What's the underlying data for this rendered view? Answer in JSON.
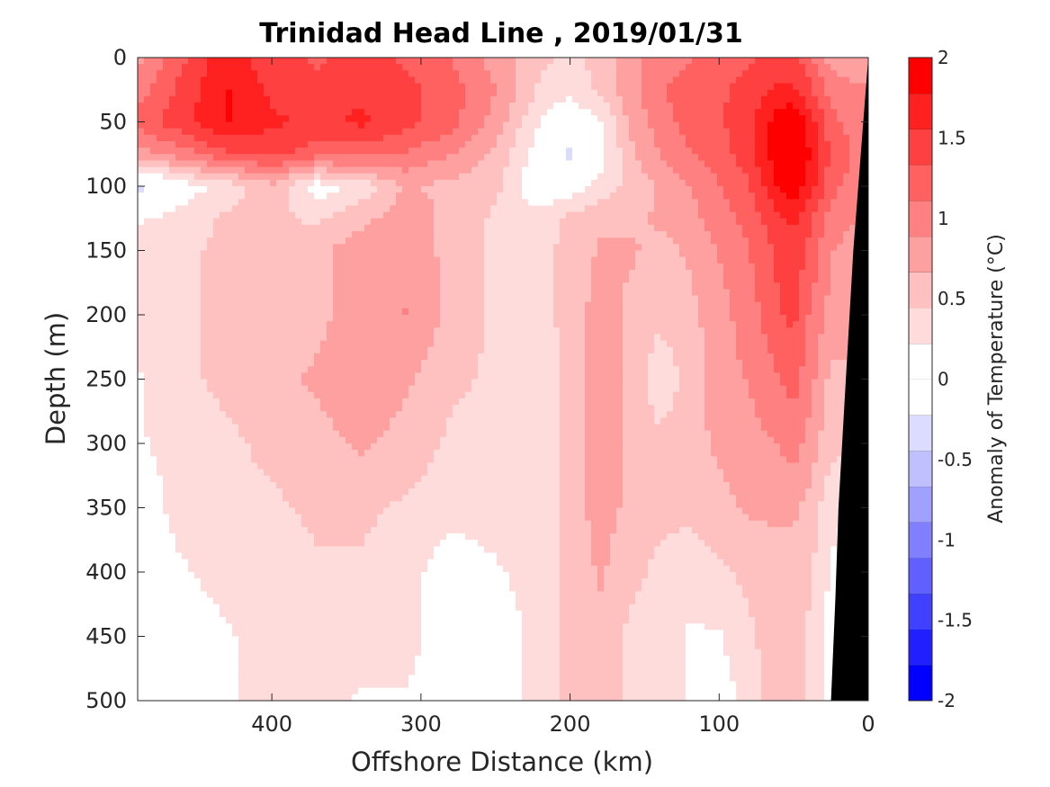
{
  "chart_data": {
    "type": "heatmap",
    "title": "Trinidad Head Line , 2019/01/31",
    "xlabel": "Offshore Distance (km)",
    "ylabel": "Depth (m)",
    "xlim": [
      490,
      0
    ],
    "ylim": [
      0,
      500
    ],
    "x_reversed": true,
    "y_reversed": true,
    "xticks": [
      400,
      300,
      200,
      100,
      0
    ],
    "yticks": [
      0,
      50,
      100,
      150,
      200,
      250,
      300,
      350,
      400,
      450,
      500
    ],
    "grid": false,
    "colorbar": {
      "label": "Anomaly of Temperature (°C)",
      "range": [
        -2,
        2
      ],
      "step": 0.25,
      "ticks": [
        -2,
        -1.5,
        -1,
        -0.5,
        0,
        0.5,
        1,
        1.5,
        2
      ],
      "colors": [
        "#0000ff",
        "#2020ff",
        "#4040ff",
        "#6060ff",
        "#8080ff",
        "#a0a0ff",
        "#c0c0ff",
        "#dcdcff",
        "#ffffff",
        "#ffffff",
        "#ffdcdc",
        "#ffc0c0",
        "#ffa0a0",
        "#ff8080",
        "#ff6060",
        "#ff4040",
        "#ff2020",
        "#ff0000"
      ]
    },
    "x": [
      490,
      460,
      430,
      400,
      370,
      340,
      310,
      280,
      250,
      220,
      200,
      180,
      160,
      140,
      120,
      100,
      80,
      60,
      50,
      40,
      25,
      10,
      0
    ],
    "y": [
      0,
      25,
      50,
      75,
      100,
      125,
      150,
      200,
      250,
      300,
      350,
      400,
      450,
      500
    ],
    "z": [
      [
        0.8,
        1.3,
        1.7,
        1.4,
        1.3,
        1.4,
        1.3,
        1.1,
        0.8,
        0.5,
        0.4,
        0.5,
        0.8,
        1.0,
        1.1,
        1.2,
        1.3,
        1.4,
        1.4,
        1.2,
        0.8,
        0.8,
        0.8
      ],
      [
        1.0,
        1.4,
        1.8,
        1.5,
        1.4,
        1.5,
        1.4,
        1.2,
        0.9,
        0.4,
        0.3,
        0.5,
        0.8,
        1.1,
        1.2,
        1.3,
        1.4,
        1.6,
        1.6,
        1.4,
        1.0,
        0.9,
        0.9
      ],
      [
        1.2,
        1.5,
        1.8,
        1.6,
        1.5,
        1.6,
        1.4,
        1.2,
        0.8,
        0.2,
        0.0,
        0.2,
        0.7,
        1.0,
        1.2,
        1.3,
        1.5,
        1.9,
        2.0,
        1.7,
        1.2,
        1.0,
        1.0
      ],
      [
        0.8,
        1.0,
        1.3,
        1.4,
        1.2,
        1.2,
        1.1,
        0.9,
        0.6,
        0.1,
        -0.3,
        0.1,
        0.6,
        0.9,
        1.1,
        1.2,
        1.5,
        1.9,
        2.0,
        1.8,
        1.3,
        1.1,
        1.1
      ],
      [
        -0.3,
        0.1,
        0.3,
        0.6,
        0.1,
        0.3,
        0.7,
        0.6,
        0.5,
        0.0,
        0.1,
        0.3,
        0.5,
        0.7,
        0.9,
        1.1,
        1.3,
        1.8,
        1.9,
        1.7,
        1.2,
        1.0,
        1.0
      ],
      [
        0.2,
        0.3,
        0.5,
        0.5,
        0.4,
        0.6,
        0.8,
        0.6,
        0.4,
        0.3,
        0.5,
        0.6,
        0.6,
        0.7,
        0.8,
        1.0,
        1.2,
        1.5,
        1.6,
        1.4,
        1.0,
        0.9,
        0.9
      ],
      [
        0.3,
        0.4,
        0.5,
        0.5,
        0.6,
        0.8,
        0.8,
        0.6,
        0.4,
        0.4,
        0.5,
        0.7,
        0.7,
        0.6,
        0.7,
        0.9,
        1.1,
        1.4,
        1.5,
        1.3,
        0.9,
        0.8,
        0.8
      ],
      [
        0.3,
        0.4,
        0.5,
        0.6,
        0.6,
        0.8,
        0.9,
        0.6,
        0.4,
        0.4,
        0.5,
        0.8,
        0.6,
        0.5,
        0.6,
        0.8,
        1.0,
        1.3,
        1.4,
        1.1,
        0.8,
        0.8,
        0.8
      ],
      [
        0.2,
        0.4,
        0.5,
        0.6,
        0.7,
        0.8,
        0.7,
        0.5,
        0.4,
        0.3,
        0.5,
        0.8,
        0.6,
        0.3,
        0.5,
        0.8,
        0.9,
        1.1,
        1.2,
        1.0,
        0.6,
        0.6,
        0.6
      ],
      [
        0.2,
        0.3,
        0.4,
        0.5,
        0.6,
        0.7,
        0.6,
        0.4,
        0.3,
        0.3,
        0.5,
        0.8,
        0.6,
        0.5,
        0.6,
        0.7,
        0.8,
        0.9,
        1.0,
        0.8,
        0.5,
        0.5,
        0.5
      ],
      [
        0.1,
        0.3,
        0.4,
        0.4,
        0.5,
        0.5,
        0.4,
        0.3,
        0.3,
        0.3,
        0.5,
        0.8,
        0.6,
        0.5,
        0.5,
        0.6,
        0.7,
        0.7,
        0.7,
        0.6,
        0.3,
        0.2,
        0.2
      ],
      [
        0.1,
        0.2,
        0.3,
        0.3,
        0.4,
        0.4,
        0.3,
        0.1,
        0.2,
        0.3,
        0.5,
        0.7,
        0.5,
        0.4,
        0.3,
        0.4,
        0.5,
        0.6,
        0.6,
        0.5,
        0.2,
        0.0,
        0.0
      ],
      [
        0.0,
        0.1,
        0.2,
        0.3,
        0.3,
        0.3,
        0.3,
        0.1,
        0.1,
        0.3,
        0.5,
        0.6,
        0.4,
        0.3,
        0.2,
        0.2,
        0.4,
        0.6,
        0.6,
        0.4,
        0.1,
        0.0,
        0.0
      ],
      [
        0.0,
        0.1,
        0.2,
        0.3,
        0.3,
        0.2,
        0.2,
        0.1,
        0.1,
        0.3,
        0.5,
        0.6,
        0.4,
        0.3,
        0.2,
        0.1,
        0.3,
        0.6,
        0.6,
        0.4,
        0.1,
        0.0,
        0.0
      ]
    ],
    "bottom_mask": {
      "color": "#000000",
      "x": [
        0,
        10,
        15,
        20,
        22,
        25
      ],
      "y": [
        0,
        150,
        250,
        350,
        420,
        500
      ]
    }
  }
}
